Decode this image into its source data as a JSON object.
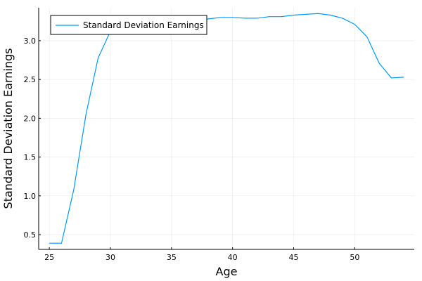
{
  "chart_data": {
    "type": "line",
    "title": "",
    "xlabel": "Age",
    "ylabel": "Standard Deviation Earnings",
    "xlim": [
      24.13,
      54.87
    ],
    "ylim": [
      0.31,
      3.425
    ],
    "xticks": [
      25,
      30,
      35,
      40,
      45,
      50
    ],
    "yticks": [
      0.5,
      1.0,
      1.5,
      2.0,
      2.5,
      3.0
    ],
    "xtick_labels": [
      "25",
      "30",
      "35",
      "40",
      "45",
      "50"
    ],
    "ytick_labels": [
      "0.5",
      "1.0",
      "1.5",
      "2.0",
      "2.5",
      "3.0"
    ],
    "grid": true,
    "legend_position": "top-left",
    "series": [
      {
        "name": "Standard Deviation Earnings",
        "color": "#009AFA",
        "x": [
          25,
          26,
          27,
          28,
          29,
          30,
          31,
          32,
          33,
          34,
          35,
          36,
          37,
          38,
          39,
          40,
          41,
          42,
          43,
          44,
          45,
          46,
          47,
          48,
          49,
          50,
          51,
          52,
          53,
          54
        ],
        "y": [
          0.39,
          0.39,
          1.08,
          2.05,
          2.78,
          3.12,
          3.17,
          3.19,
          3.21,
          3.22,
          3.23,
          3.24,
          3.25,
          3.28,
          3.3,
          3.3,
          3.29,
          3.29,
          3.31,
          3.31,
          3.33,
          3.34,
          3.35,
          3.33,
          3.29,
          3.21,
          3.05,
          2.71,
          2.52,
          2.53
        ]
      }
    ]
  }
}
